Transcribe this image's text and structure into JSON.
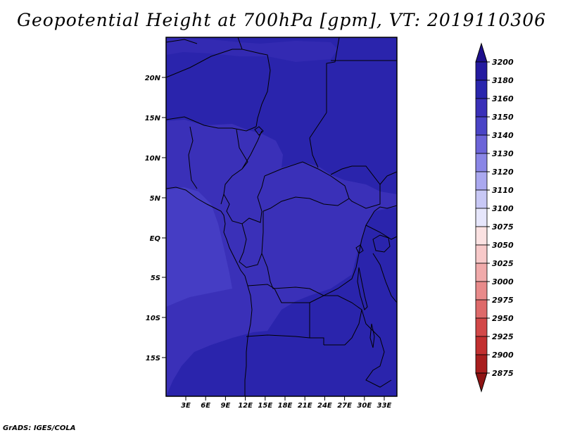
{
  "title": "Geopotential Height at 700hPa [gpm], VT: 2019110306",
  "credit": "GrADS: IGES/COLA",
  "map": {
    "lat_ticks": [
      "20N",
      "15N",
      "10N",
      "5N",
      "EQ",
      "5S",
      "10S",
      "15S"
    ],
    "lon_ticks": [
      "3E",
      "6E",
      "9E",
      "12E",
      "15E",
      "18E",
      "21E",
      "24E",
      "27E",
      "30E",
      "33E"
    ]
  },
  "colorbar": {
    "labels": [
      "3200",
      "3180",
      "3160",
      "3150",
      "3140",
      "3130",
      "3120",
      "3110",
      "3100",
      "3075",
      "3050",
      "3025",
      "3000",
      "2975",
      "2950",
      "2925",
      "2900",
      "2875"
    ],
    "colors": {
      "top_arrow": "#1e0f8c",
      "shades": [
        "#241aa0",
        "#2a26ad",
        "#3a30b8",
        "#4a44c6",
        "#6c64d8",
        "#8a86e6",
        "#aaa8ef",
        "#c8c8f5",
        "#e6e6fb",
        "#fbe2e2",
        "#f7c9c9",
        "#f0aaaa",
        "#e88a8a",
        "#de6a6a",
        "#d24848",
        "#c23030",
        "#a81e1e"
      ],
      "bottom_arrow": "#8e1414"
    }
  },
  "fields": {
    "colors": {
      "dark": "#2a24ac",
      "mid": "#3a30b8",
      "light": "#453dc4"
    }
  }
}
